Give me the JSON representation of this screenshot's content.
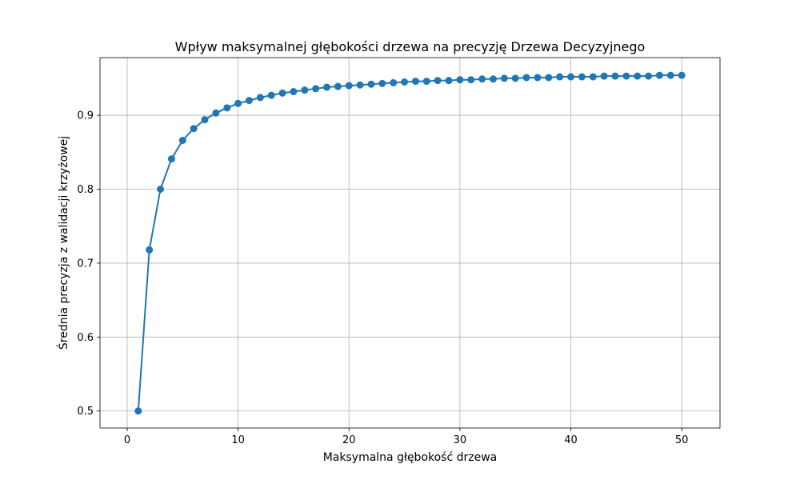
{
  "chart_data": {
    "type": "line",
    "title": "Wpływ maksymalnej głębokości drzewa na precyzję Drzewa Decyzyjnego",
    "xlabel": "Maksymalna głębokość drzewa",
    "ylabel": "Średnia precyzja z walidacji krzyżowej",
    "xlim": [
      -2.45,
      53.45
    ],
    "ylim": [
      0.477,
      0.978
    ],
    "xticks": [
      0,
      10,
      20,
      30,
      40,
      50
    ],
    "xtick_labels": [
      "0",
      "10",
      "20",
      "30",
      "40",
      "50"
    ],
    "yticks": [
      0.5,
      0.6,
      0.7,
      0.8,
      0.9
    ],
    "ytick_labels": [
      "0.5",
      "0.6",
      "0.7",
      "0.8",
      "0.9"
    ],
    "grid": true,
    "marker": "circle",
    "color": "#1f77b4",
    "x": [
      1,
      2,
      3,
      4,
      5,
      6,
      7,
      8,
      9,
      10,
      11,
      12,
      13,
      14,
      15,
      16,
      17,
      18,
      19,
      20,
      21,
      22,
      23,
      24,
      25,
      26,
      27,
      28,
      29,
      30,
      31,
      32,
      33,
      34,
      35,
      36,
      37,
      38,
      39,
      40,
      41,
      42,
      43,
      44,
      45,
      46,
      47,
      48,
      49,
      50
    ],
    "series": [
      {
        "values": [
          0.5,
          0.718,
          0.8,
          0.841,
          0.866,
          0.882,
          0.894,
          0.903,
          0.91,
          0.916,
          0.92,
          0.924,
          0.927,
          0.93,
          0.932,
          0.934,
          0.936,
          0.938,
          0.939,
          0.94,
          0.941,
          0.942,
          0.943,
          0.944,
          0.945,
          0.946,
          0.946,
          0.947,
          0.947,
          0.948,
          0.948,
          0.949,
          0.949,
          0.95,
          0.95,
          0.951,
          0.951,
          0.951,
          0.952,
          0.952,
          0.952,
          0.952,
          0.953,
          0.953,
          0.953,
          0.953,
          0.953,
          0.954,
          0.954,
          0.954
        ]
      }
    ]
  }
}
